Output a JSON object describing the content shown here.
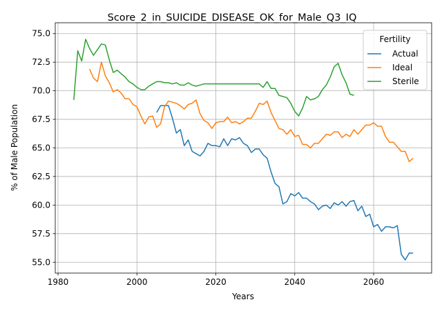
{
  "chart_data": {
    "type": "line",
    "title": "Score_2_in_SUICIDE_DISEASE_OK_for_Male_Q3_IQ",
    "xlabel": "Years",
    "ylabel": "% of Male Population",
    "xlim": [
      1979.3,
      2074.7
    ],
    "ylim": [
      54.05,
      75.95
    ],
    "x_ticks": [
      1980,
      2000,
      2020,
      2040,
      2060
    ],
    "y_ticks": [
      55.0,
      57.5,
      60.0,
      62.5,
      65.0,
      67.5,
      70.0,
      72.5,
      75.0
    ],
    "x_tick_labels": [
      "1980",
      "2000",
      "2020",
      "2040",
      "2060"
    ],
    "y_tick_labels": [
      "55.0",
      "57.5",
      "60.0",
      "62.5",
      "65.0",
      "67.5",
      "70.0",
      "72.5",
      "75.0"
    ],
    "grid": true,
    "legend": {
      "title": "Fertility",
      "placement": "top-right"
    },
    "series": [
      {
        "name": "Actual",
        "color": "#1f77b4",
        "x": [
          2005,
          2006,
          2007,
          2008,
          2009,
          2010,
          2011,
          2012,
          2013,
          2014,
          2015,
          2016,
          2017,
          2018,
          2019,
          2020,
          2021,
          2022,
          2023,
          2024,
          2025,
          2026,
          2027,
          2028,
          2029,
          2030,
          2031,
          2032,
          2033,
          2034,
          2035,
          2036,
          2037,
          2038,
          2039,
          2040,
          2041,
          2042,
          2043,
          2044,
          2045,
          2046,
          2047,
          2048,
          2049,
          2050,
          2051,
          2052,
          2053,
          2054,
          2055,
          2056,
          2057,
          2058,
          2059,
          2060,
          2061,
          2062,
          2063,
          2064,
          2065,
          2066,
          2067,
          2068,
          2069,
          2070
        ],
        "y": [
          68.1,
          68.7,
          68.7,
          68.7,
          67.6,
          66.3,
          66.6,
          65.2,
          65.7,
          64.7,
          64.5,
          64.3,
          64.7,
          65.4,
          65.2,
          65.2,
          65.1,
          65.8,
          65.2,
          65.8,
          65.7,
          65.9,
          65.4,
          65.2,
          64.6,
          64.9,
          64.9,
          64.4,
          64.1,
          62.9,
          61.9,
          61.6,
          60.1,
          60.3,
          61.0,
          60.8,
          61.1,
          60.6,
          60.6,
          60.3,
          60.1,
          59.6,
          59.9,
          60.0,
          59.7,
          60.2,
          60.0,
          60.3,
          59.9,
          60.3,
          60.4,
          59.5,
          59.9,
          59.0,
          59.2,
          58.1,
          58.3,
          57.7,
          58.1,
          58.1,
          58.0,
          58.2,
          55.7,
          55.2,
          55.8,
          55.8
        ]
      },
      {
        "name": "Ideal",
        "color": "#ff7f0e",
        "x": [
          1988,
          1989,
          1990,
          1991,
          1992,
          1993,
          1994,
          1995,
          1996,
          1997,
          1998,
          1999,
          2000,
          2001,
          2002,
          2003,
          2004,
          2005,
          2006,
          2007,
          2008,
          2009,
          2010,
          2011,
          2012,
          2013,
          2014,
          2015,
          2016,
          2017,
          2018,
          2019,
          2020,
          2021,
          2022,
          2023,
          2024,
          2025,
          2026,
          2027,
          2028,
          2029,
          2030,
          2031,
          2032,
          2033,
          2034,
          2035,
          2036,
          2037,
          2038,
          2039,
          2040,
          2041,
          2042,
          2043,
          2044,
          2045,
          2046,
          2047,
          2048,
          2049,
          2050,
          2051,
          2052,
          2053,
          2054,
          2055,
          2056,
          2057,
          2058,
          2059,
          2060,
          2061,
          2062,
          2063,
          2064,
          2065,
          2066,
          2067,
          2068,
          2069,
          2070
        ],
        "y": [
          71.9,
          71.1,
          70.8,
          72.5,
          71.3,
          70.7,
          69.9,
          70.1,
          69.8,
          69.3,
          69.3,
          68.8,
          68.6,
          67.8,
          67.1,
          67.7,
          67.8,
          66.8,
          67.1,
          68.6,
          69.1,
          69.0,
          68.9,
          68.7,
          68.4,
          68.8,
          68.9,
          69.2,
          68.0,
          67.4,
          67.2,
          66.7,
          67.2,
          67.3,
          67.3,
          67.7,
          67.2,
          67.3,
          67.1,
          67.3,
          67.6,
          67.6,
          68.2,
          68.9,
          68.8,
          69.1,
          68.1,
          67.4,
          66.7,
          66.6,
          66.2,
          66.6,
          66.0,
          66.1,
          65.3,
          65.3,
          65.0,
          65.4,
          65.4,
          65.8,
          66.2,
          66.1,
          66.4,
          66.4,
          65.9,
          66.2,
          66.0,
          66.6,
          66.2,
          66.6,
          67.0,
          67.0,
          67.2,
          66.9,
          66.9,
          66.0,
          65.5,
          65.5,
          65.1,
          64.7,
          64.7,
          63.8,
          64.1
        ]
      },
      {
        "name": "Sterile",
        "color": "#2ca02c",
        "x": [
          1984,
          1985,
          1986,
          1987,
          1988,
          1989,
          1990,
          1991,
          1992,
          1993,
          1994,
          1995,
          1996,
          1997,
          1998,
          1999,
          2000,
          2001,
          2002,
          2003,
          2004,
          2005,
          2006,
          2007,
          2008,
          2009,
          2010,
          2011,
          2012,
          2013,
          2014,
          2015,
          2016,
          2017,
          2018,
          2019,
          2020,
          2021,
          2022,
          2023,
          2024,
          2025,
          2026,
          2027,
          2028,
          2029,
          2030,
          2031,
          2032,
          2033,
          2034,
          2035,
          2036,
          2037,
          2038,
          2039,
          2040,
          2041,
          2042,
          2043,
          2044,
          2045,
          2046,
          2047,
          2048,
          2049,
          2050,
          2051,
          2052,
          2053,
          2054,
          2055
        ],
        "y": [
          69.2,
          73.5,
          72.6,
          74.5,
          73.7,
          73.1,
          73.6,
          74.1,
          74.0,
          72.7,
          71.6,
          71.8,
          71.5,
          71.2,
          70.8,
          70.6,
          70.3,
          70.1,
          70.1,
          70.4,
          70.6,
          70.8,
          70.8,
          70.7,
          70.7,
          70.6,
          70.7,
          70.5,
          70.5,
          70.7,
          70.5,
          70.4,
          70.5,
          70.6,
          70.6,
          70.6,
          70.6,
          70.6,
          70.6,
          70.6,
          70.6,
          70.6,
          70.6,
          70.6,
          70.6,
          70.6,
          70.6,
          70.6,
          70.3,
          70.8,
          70.2,
          70.2,
          69.6,
          69.5,
          69.4,
          68.9,
          68.2,
          67.8,
          68.5,
          69.5,
          69.2,
          69.3,
          69.5,
          70.1,
          70.5,
          71.2,
          72.1,
          72.4,
          71.4,
          70.7,
          69.7,
          69.6
        ]
      }
    ]
  }
}
